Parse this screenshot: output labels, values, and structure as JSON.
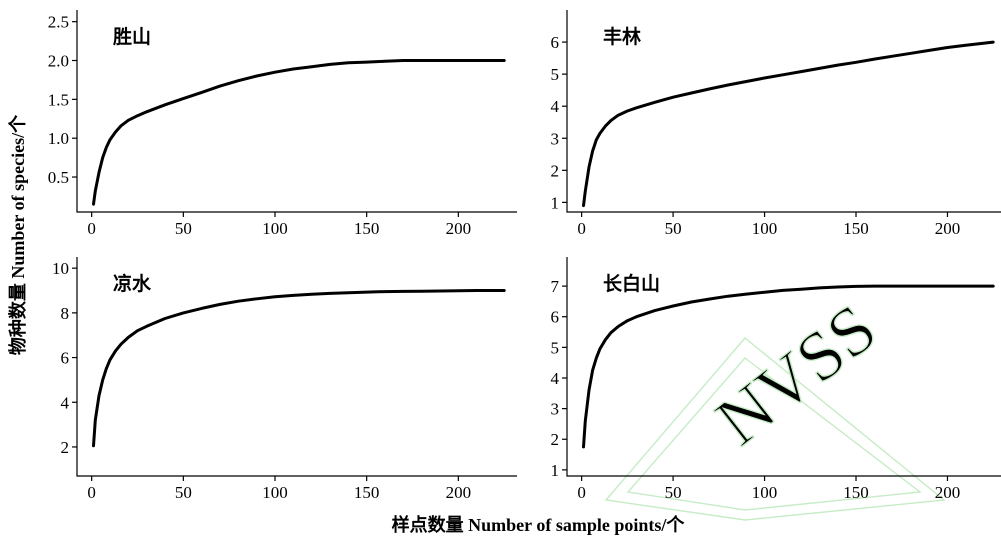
{
  "figure": {
    "ylabel": "物种数量 Number of species/个",
    "xlabel": "样点数量 Number of sample points/个"
  },
  "chart_data": [
    {
      "type": "line",
      "title": "胜山",
      "xticks": [
        0,
        50,
        100,
        150,
        200
      ],
      "yticks": [
        0.5,
        1.0,
        1.5,
        2.0,
        2.5
      ],
      "ytick_labels": [
        "0.5",
        "1.0",
        "1.5",
        "2.0",
        "2.5"
      ],
      "xlim": [
        -8,
        232
      ],
      "ylim": [
        0.05,
        2.65
      ],
      "series": [
        {
          "x": [
            1,
            2,
            4,
            6,
            8,
            10,
            13,
            16,
            20,
            25,
            30,
            40,
            50,
            60,
            70,
            80,
            90,
            100,
            110,
            120,
            130,
            140,
            150,
            160,
            170,
            180,
            190,
            200,
            210,
            225
          ],
          "y": [
            0.15,
            0.32,
            0.56,
            0.75,
            0.88,
            0.98,
            1.08,
            1.16,
            1.23,
            1.29,
            1.34,
            1.43,
            1.51,
            1.59,
            1.67,
            1.74,
            1.8,
            1.85,
            1.89,
            1.92,
            1.95,
            1.97,
            1.98,
            1.99,
            2.0,
            2.0,
            2.0,
            2.0,
            2.0,
            2.0
          ]
        }
      ]
    },
    {
      "type": "line",
      "title": "丰林",
      "xticks": [
        0,
        50,
        100,
        150,
        200
      ],
      "yticks": [
        1,
        2,
        3,
        4,
        5,
        6
      ],
      "ytick_labels": [
        "1",
        "2",
        "3",
        "4",
        "5",
        "6"
      ],
      "xlim": [
        -8,
        232
      ],
      "ylim": [
        0.7,
        7.0
      ],
      "series": [
        {
          "x": [
            1,
            2,
            4,
            6,
            8,
            10,
            13,
            16,
            20,
            25,
            30,
            40,
            50,
            60,
            70,
            80,
            90,
            100,
            110,
            120,
            130,
            140,
            150,
            160,
            170,
            180,
            190,
            200,
            210,
            225
          ],
          "y": [
            0.9,
            1.35,
            2.1,
            2.6,
            2.95,
            3.15,
            3.38,
            3.55,
            3.72,
            3.85,
            3.95,
            4.12,
            4.28,
            4.41,
            4.54,
            4.66,
            4.77,
            4.88,
            4.98,
            5.08,
            5.18,
            5.28,
            5.37,
            5.47,
            5.56,
            5.65,
            5.74,
            5.83,
            5.9,
            6.0
          ]
        }
      ]
    },
    {
      "type": "line",
      "title": "凉水",
      "xticks": [
        0,
        50,
        100,
        150,
        200
      ],
      "yticks": [
        2,
        4,
        6,
        8,
        10
      ],
      "ytick_labels": [
        "2",
        "4",
        "6",
        "8",
        "10"
      ],
      "xlim": [
        -8,
        232
      ],
      "ylim": [
        0.7,
        10.5
      ],
      "series": [
        {
          "x": [
            1,
            2,
            4,
            6,
            8,
            10,
            13,
            16,
            20,
            25,
            30,
            40,
            50,
            60,
            70,
            80,
            90,
            100,
            110,
            120,
            130,
            140,
            150,
            160,
            170,
            180,
            190,
            200,
            210,
            225
          ],
          "y": [
            2.05,
            3.2,
            4.3,
            5.0,
            5.5,
            5.9,
            6.3,
            6.6,
            6.9,
            7.2,
            7.4,
            7.75,
            8.0,
            8.2,
            8.38,
            8.52,
            8.63,
            8.72,
            8.78,
            8.83,
            8.87,
            8.9,
            8.93,
            8.95,
            8.96,
            8.97,
            8.98,
            8.99,
            9.0,
            9.0
          ]
        }
      ]
    },
    {
      "type": "line",
      "title": "长白山",
      "xticks": [
        0,
        50,
        100,
        150,
        200
      ],
      "yticks": [
        1,
        2,
        3,
        4,
        5,
        6,
        7
      ],
      "ytick_labels": [
        "1",
        "2",
        "3",
        "4",
        "5",
        "6",
        "7"
      ],
      "xlim": [
        -8,
        232
      ],
      "ylim": [
        0.8,
        7.95
      ],
      "series": [
        {
          "x": [
            1,
            2,
            4,
            6,
            8,
            10,
            13,
            16,
            20,
            25,
            30,
            40,
            50,
            60,
            70,
            80,
            90,
            100,
            110,
            120,
            130,
            140,
            150,
            160,
            170,
            180,
            190,
            200,
            210,
            225
          ],
          "y": [
            1.75,
            2.6,
            3.6,
            4.25,
            4.65,
            4.95,
            5.25,
            5.48,
            5.68,
            5.87,
            6.0,
            6.2,
            6.35,
            6.48,
            6.58,
            6.67,
            6.74,
            6.8,
            6.86,
            6.9,
            6.94,
            6.97,
            6.99,
            7.0,
            7.0,
            7.0,
            7.0,
            7.0,
            7.0,
            7.0
          ]
        }
      ]
    }
  ]
}
